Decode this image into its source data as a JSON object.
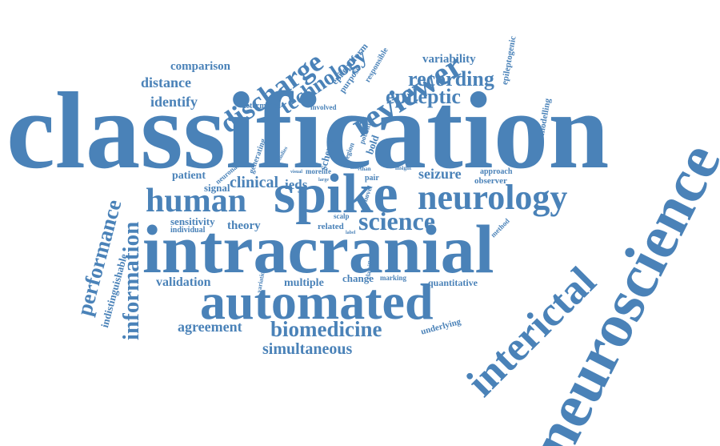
{
  "colors": {
    "word": "#4a82b8",
    "background": "#ffffff"
  },
  "words": [
    {
      "text": "classification"
    },
    {
      "text": "neuroscience"
    },
    {
      "text": "intracranial"
    },
    {
      "text": "spike"
    },
    {
      "text": "automated"
    },
    {
      "text": "interictal"
    },
    {
      "text": "neurology"
    },
    {
      "text": "human"
    },
    {
      "text": "reviewer"
    },
    {
      "text": "discharge"
    },
    {
      "text": "technology"
    },
    {
      "text": "information"
    },
    {
      "text": "performance"
    },
    {
      "text": "biomedicine"
    },
    {
      "text": "science"
    },
    {
      "text": "recording"
    },
    {
      "text": "epileptic"
    },
    {
      "text": "simultaneous"
    },
    {
      "text": "agreement"
    },
    {
      "text": "distance"
    },
    {
      "text": "identify"
    },
    {
      "text": "comparison"
    },
    {
      "text": "variability"
    },
    {
      "text": "clinical"
    },
    {
      "text": "seizure"
    },
    {
      "text": "validation"
    },
    {
      "text": "multiple"
    },
    {
      "text": "quantitative"
    },
    {
      "text": "change"
    },
    {
      "text": "theory"
    },
    {
      "text": "sensitivity"
    },
    {
      "text": "individual"
    },
    {
      "text": "patient"
    },
    {
      "text": "signal"
    },
    {
      "text": "ieds"
    },
    {
      "text": "indistinguishable"
    },
    {
      "text": "epileptiform"
    },
    {
      "text": "epileptogenic"
    },
    {
      "text": "modelling"
    },
    {
      "text": "responsible"
    },
    {
      "text": "purpose"
    },
    {
      "text": "determined"
    },
    {
      "text": "involved"
    },
    {
      "text": "scheme"
    },
    {
      "text": "bold"
    },
    {
      "text": "potential"
    },
    {
      "text": "region"
    },
    {
      "text": "studies"
    },
    {
      "text": "generating"
    },
    {
      "text": "neuronal"
    },
    {
      "text": "approach"
    },
    {
      "text": "observer"
    },
    {
      "text": "related"
    },
    {
      "text": "method"
    },
    {
      "text": "underlying"
    },
    {
      "text": "scalp"
    },
    {
      "text": "marking"
    },
    {
      "text": "classifier"
    },
    {
      "text": "variation"
    },
    {
      "text": "novel"
    },
    {
      "text": "pair"
    },
    {
      "text": "insight"
    },
    {
      "text": "map"
    },
    {
      "text": "more"
    },
    {
      "text": "life"
    },
    {
      "text": "than"
    },
    {
      "text": "label"
    },
    {
      "text": "visual"
    },
    {
      "text": "large"
    },
    {
      "text": "some"
    }
  ]
}
